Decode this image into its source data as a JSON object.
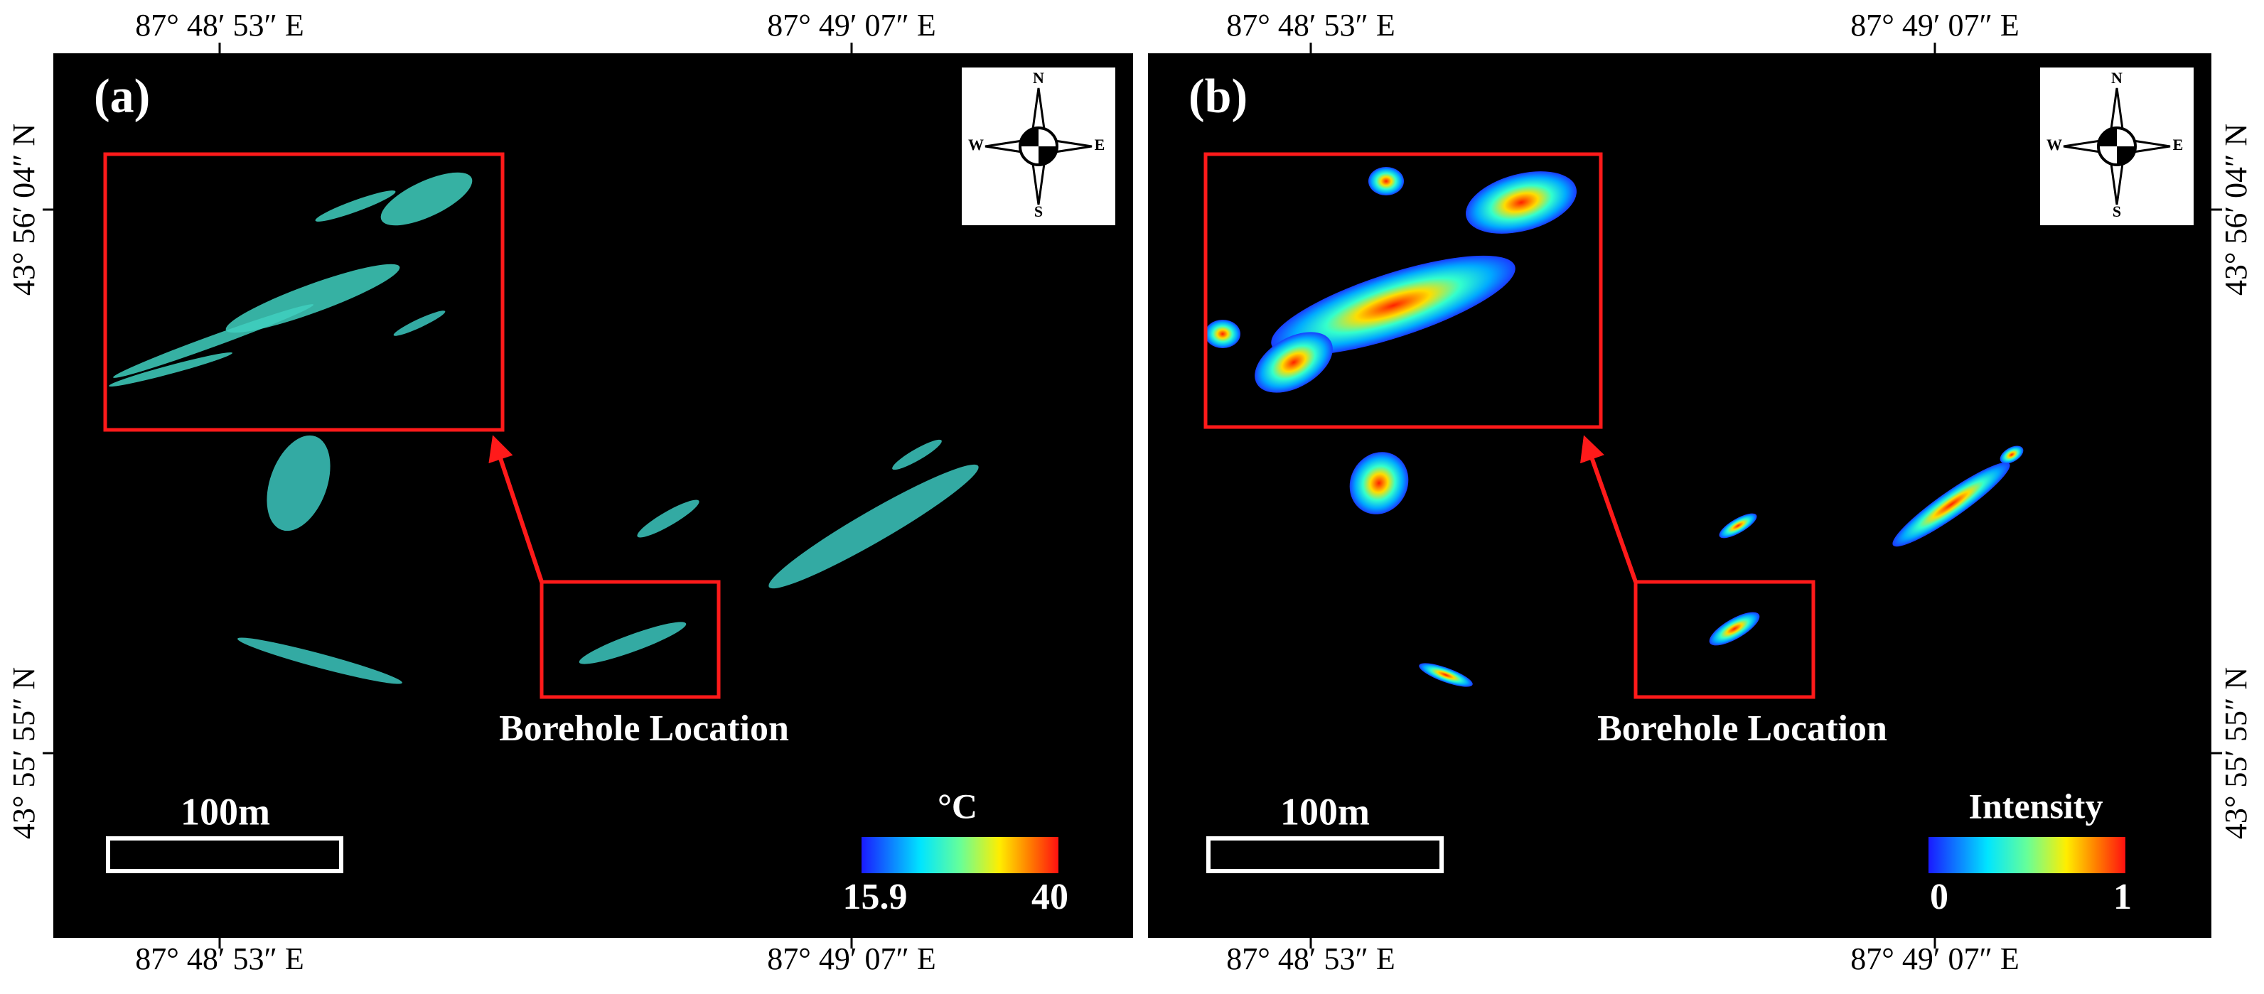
{
  "panels": [
    {
      "label": "(a)",
      "top_ticks": [
        "87° 48′ 53″ E",
        "87° 49′ 07″ E"
      ],
      "bottom_ticks": [
        "87° 48′ 53″ E",
        "87° 49′ 07″ E"
      ],
      "side_ticks": [
        "43° 56′ 04″ N",
        "43° 55′ 55″ N"
      ],
      "annotation": "Borehole Location",
      "scale_bar": "100m",
      "colorbar": {
        "title": "°C",
        "min": 15.9,
        "max": 40
      },
      "compass": {
        "n": "N",
        "e": "E",
        "s": "S",
        "w": "W"
      }
    },
    {
      "label": "(b)",
      "top_ticks": [
        "87° 48′ 53″ E",
        "87° 49′ 07″ E"
      ],
      "bottom_ticks": [
        "87° 48′ 53″ E",
        "87° 49′ 07″ E"
      ],
      "side_ticks": [
        "43° 56′ 04″ N",
        "43° 55′ 55″ N"
      ],
      "annotation": "Borehole Location",
      "scale_bar": "100m",
      "colorbar": {
        "title": "Intensity",
        "min": 0,
        "max": 1
      },
      "compass": {
        "n": "N",
        "e": "E",
        "s": "S",
        "w": "W"
      }
    }
  ]
}
